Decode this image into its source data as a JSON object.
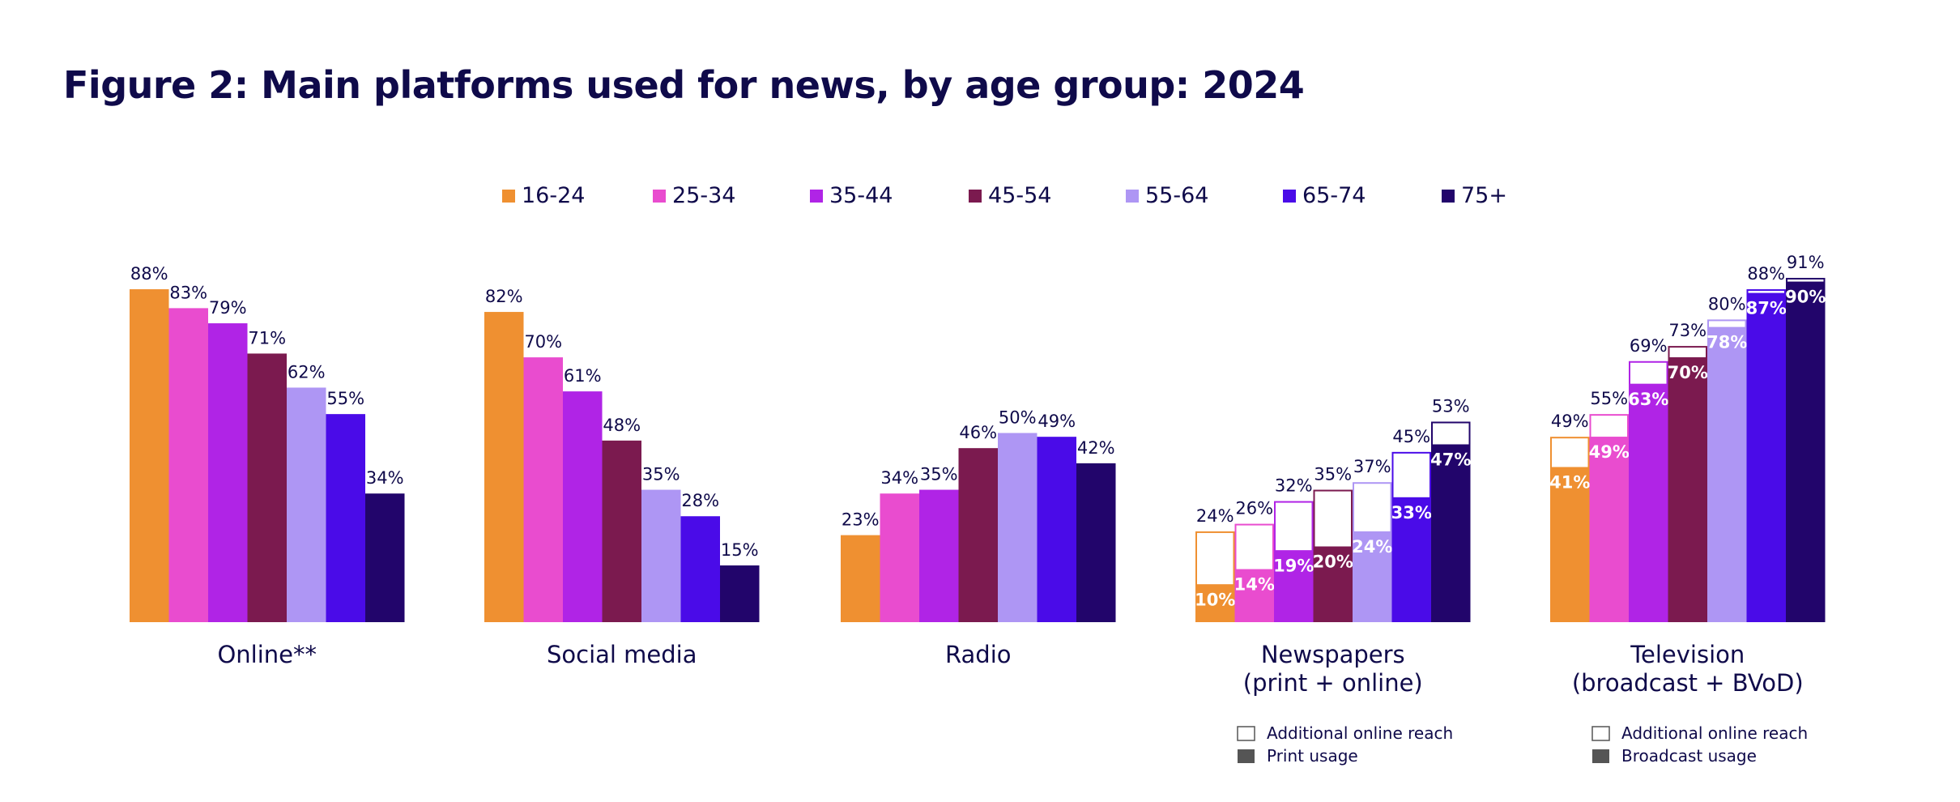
{
  "chart_data": {
    "type": "bar",
    "title": "Figure 2: Main platforms used for news, by age group: 2024",
    "series_names": [
      "16-24",
      "25-34",
      "35-44",
      "45-54",
      "55-64",
      "65-74",
      "75+"
    ],
    "colors": [
      "#ef9031",
      "#e94ccf",
      "#b024e6",
      "#7b1a4f",
      "#ae96f4",
      "#4a0be8",
      "#22056b"
    ],
    "ylim": [
      0,
      100
    ],
    "groups": [
      {
        "label_lines": [
          "Online**"
        ],
        "values": [
          88,
          83,
          79,
          71,
          62,
          55,
          34
        ],
        "value_labels": [
          "88%",
          "83%",
          "79%",
          "71%",
          "62%",
          "55%",
          "34%"
        ]
      },
      {
        "label_lines": [
          "Social media"
        ],
        "values": [
          82,
          70,
          61,
          48,
          35,
          28,
          15
        ],
        "value_labels": [
          "82%",
          "70%",
          "61%",
          "48%",
          "35%",
          "28%",
          "15%"
        ]
      },
      {
        "label_lines": [
          "Radio"
        ],
        "values": [
          23,
          34,
          35,
          46,
          50,
          49,
          42
        ],
        "value_labels": [
          "23%",
          "34%",
          "35%",
          "46%",
          "50%",
          "49%",
          "42%"
        ]
      },
      {
        "label_lines": [
          "Newspapers",
          "(print + online)"
        ],
        "values": [
          10,
          14,
          19,
          20,
          24,
          33,
          47
        ],
        "value_labels": [
          "10%",
          "14%",
          "19%",
          "20%",
          "24%",
          "33%",
          "47%"
        ],
        "totals": [
          24,
          26,
          32,
          35,
          37,
          45,
          53
        ],
        "total_labels": [
          "24%",
          "26%",
          "32%",
          "35%",
          "37%",
          "45%",
          "53%"
        ]
      },
      {
        "label_lines": [
          "Television",
          "(broadcast + BVoD)"
        ],
        "values": [
          41,
          49,
          63,
          70,
          78,
          87,
          90
        ],
        "value_labels": [
          "41%",
          "49%",
          "63%",
          "70%",
          "78%",
          "87%",
          "90%"
        ],
        "totals": [
          49,
          55,
          69,
          73,
          80,
          88,
          91
        ],
        "total_labels": [
          "49%",
          "55%",
          "69%",
          "73%",
          "80%",
          "88%",
          "91%"
        ]
      }
    ],
    "stack_legends": [
      {
        "group": 3,
        "items": [
          "Additional online reach",
          "Print usage"
        ]
      },
      {
        "group": 4,
        "items": [
          "Additional online reach",
          "Broadcast usage"
        ]
      }
    ],
    "legend_position": "top"
  }
}
